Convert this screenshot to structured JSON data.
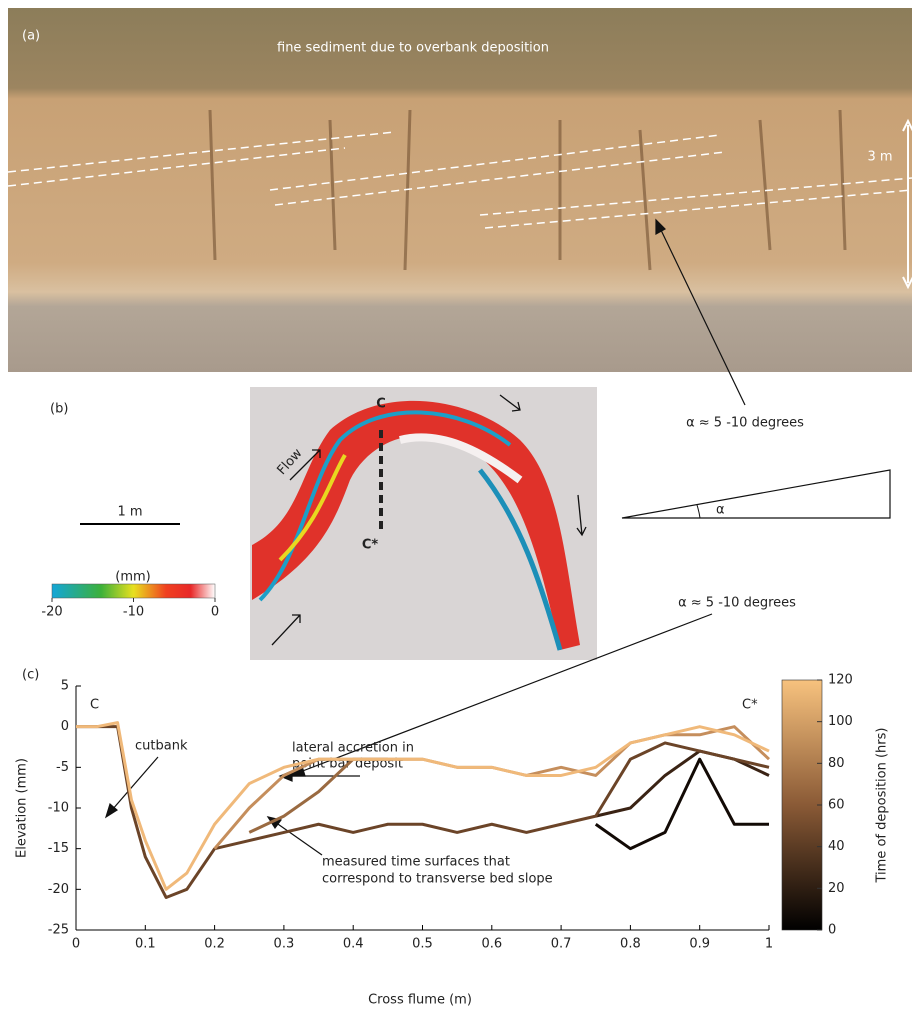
{
  "panel_a": {
    "label": "(a)",
    "annotation": "fine sediment due to overbank deposition",
    "scale": "3 m"
  },
  "panel_b": {
    "label": "(b)",
    "section_start": "C",
    "section_end": "C*",
    "flow": "Flow",
    "scale_bar": "1 m",
    "colorbar_label": "(mm)",
    "colorbar_lim": [
      -20,
      0
    ],
    "colorbar_ticks": [
      -20,
      -10,
      0
    ],
    "angle_note": "α ≈ 5 -10 degrees",
    "angle_symbol": "α"
  },
  "chart_data": {
    "type": "line",
    "label": "(c)",
    "x_label": "Cross flume (m)",
    "y_label": "Elevation (mm)",
    "section_start": "C",
    "section_end": "C*",
    "annotations": {
      "cutbank": "cutbank",
      "accretion": [
        "lateral accretion in",
        "point bar deposit"
      ],
      "surfaces": [
        "measured time surfaces that",
        "correspond to transverse bed slope"
      ],
      "angle_note": "α ≈ 5 -10 degrees"
    },
    "x": [
      0,
      0.03,
      0.06,
      0.08,
      0.1,
      0.13,
      0.16,
      0.2,
      0.25,
      0.3,
      0.35,
      0.4,
      0.45,
      0.5,
      0.55,
      0.6,
      0.65,
      0.7,
      0.75,
      0.8,
      0.85,
      0.9,
      0.95,
      1
    ],
    "series": [
      {
        "color": "#120a05",
        "values": [
          null,
          null,
          null,
          null,
          null,
          null,
          null,
          null,
          null,
          null,
          null,
          null,
          null,
          null,
          null,
          null,
          null,
          null,
          -12,
          -15,
          -13,
          -4,
          -12,
          -12
        ]
      },
      {
        "color": "#3a2314",
        "values": [
          null,
          null,
          null,
          null,
          null,
          null,
          null,
          null,
          null,
          null,
          null,
          null,
          null,
          null,
          null,
          null,
          null,
          null,
          -11,
          -10,
          -6,
          -3,
          -4,
          -6
        ]
      },
      {
        "color": "#6b4428",
        "values": [
          0,
          0,
          0,
          -10,
          -16,
          -21,
          -20,
          -15,
          -14,
          -13,
          -12,
          -13,
          -12,
          -12,
          -13,
          -12,
          -13,
          -12,
          -11,
          -4,
          -2,
          -3,
          -4,
          -5
        ]
      },
      {
        "color": "#9a6a41",
        "values": [
          null,
          null,
          null,
          null,
          null,
          null,
          null,
          null,
          -13,
          -11,
          -8,
          -4,
          -4,
          null,
          null,
          null,
          null,
          null,
          null,
          null,
          null,
          null,
          null,
          null
        ]
      },
      {
        "color": "#c58e5c",
        "values": [
          null,
          null,
          null,
          null,
          null,
          null,
          null,
          -15,
          -10,
          -6,
          -4,
          -4,
          -4,
          -4,
          -5,
          -5,
          -6,
          -5,
          -6,
          -2,
          -1,
          -1,
          0,
          -4
        ]
      },
      {
        "color": "#f0b97a",
        "values": [
          0,
          0,
          0.5,
          -9,
          -14,
          -20,
          -18,
          -12,
          -7,
          -5,
          -4,
          -4,
          -4,
          -4,
          -5,
          -5,
          -6,
          -6,
          -5,
          -2,
          -1,
          0,
          -1,
          -3
        ]
      }
    ],
    "xlim": [
      0,
      1
    ],
    "xticks": [
      0,
      0.1,
      0.2,
      0.3,
      0.4,
      0.5,
      0.6,
      0.7,
      0.8,
      0.9,
      1
    ],
    "ylim": [
      -25,
      5
    ],
    "yticks": [
      -25,
      -20,
      -15,
      -10,
      -5,
      0,
      5
    ],
    "grid": false,
    "colorbar_label": "Time of deposition (hrs)",
    "colorbar_lim": [
      0,
      120
    ],
    "colorbar_ticks": [
      0,
      20,
      40,
      60,
      80,
      100,
      120
    ]
  }
}
